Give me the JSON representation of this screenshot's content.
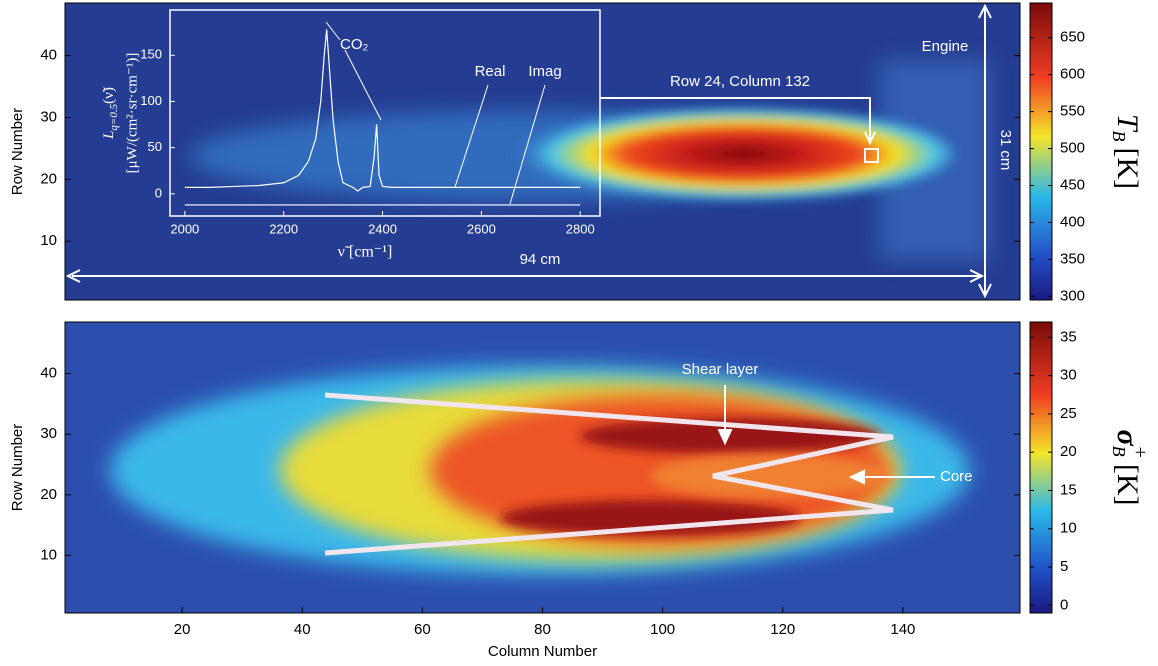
{
  "chart_data": [
    {
      "type": "heatmap",
      "ylabel": "Row Number",
      "xlim": [
        0.5,
        159.5
      ],
      "ylim": [
        0.5,
        48.5
      ],
      "yticks": [
        10,
        20,
        30,
        40
      ],
      "colorbar": {
        "label": [
          "T",
          "B",
          "[K]"
        ],
        "lim": [
          295,
          697
        ],
        "ticks": [
          300,
          350,
          400,
          450,
          500,
          550,
          600,
          650
        ]
      },
      "annotations": [
        "Engine",
        "94 cm",
        "31 cm",
        "Row 24, Column 132"
      ]
    },
    {
      "type": "heatmap",
      "xlabel": "Column Number",
      "ylabel": "Row Number",
      "xlim": [
        0.5,
        159.5
      ],
      "ylim": [
        0.5,
        48.5
      ],
      "xticks": [
        20,
        40,
        60,
        80,
        100,
        120,
        140
      ],
      "yticks": [
        10,
        20,
        30,
        40
      ],
      "colorbar": {
        "label": [
          "σ",
          "B",
          "+",
          "[K]"
        ],
        "lim": [
          -1,
          37
        ],
        "ticks": [
          0,
          5,
          10,
          15,
          20,
          25,
          30,
          35
        ]
      },
      "annotations": [
        "Shear layer",
        "Core"
      ]
    },
    {
      "type": "line",
      "xlabel": "ν̃ [cm⁻¹]",
      "ylabel": [
        "L",
        "q=0.5",
        "(ν̃)",
        "[μW/(cm²·sr·cm⁻¹)]"
      ],
      "xlim": [
        1970,
        2840
      ],
      "ylim": [
        -24,
        199
      ],
      "xticks": [
        2000,
        2200,
        2400,
        2600,
        2800
      ],
      "yticks": [
        0,
        50,
        100,
        150
      ],
      "series": [
        {
          "name": "Real",
          "color": "#ffffff",
          "x": [
            2000,
            2050,
            2100,
            2150,
            2200,
            2230,
            2250,
            2265,
            2275,
            2282,
            2287,
            2292,
            2300,
            2310,
            2320,
            2340,
            2350,
            2360,
            2375,
            2383,
            2388,
            2393,
            2400,
            2420,
            2500,
            2600,
            2700,
            2800
          ],
          "values": [
            7,
            7,
            8,
            9,
            12,
            20,
            35,
            60,
            100,
            150,
            178,
            140,
            80,
            35,
            12,
            7,
            3,
            7,
            8,
            40,
            75,
            20,
            8,
            7,
            7,
            7,
            7,
            7
          ]
        },
        {
          "name": "Imag",
          "color": "#ffffff",
          "x": [
            2000,
            2200,
            2400,
            2600,
            2800
          ],
          "values": [
            -12,
            -12,
            -12,
            -12,
            -12
          ]
        }
      ],
      "annotations": [
        "CO₂"
      ]
    }
  ]
}
